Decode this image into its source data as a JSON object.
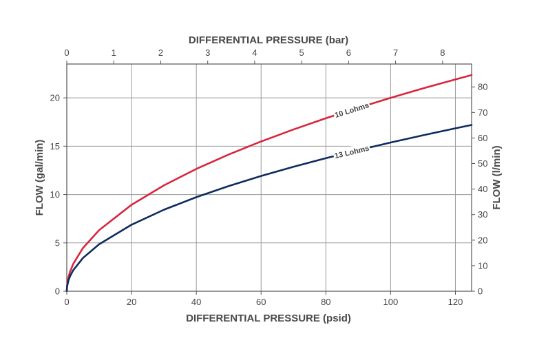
{
  "chart_data": {
    "type": "line",
    "x_bottom": {
      "label": "DIFFERENTIAL PRESSURE (psid)",
      "range": [
        0,
        125
      ],
      "ticks": [
        0,
        20,
        40,
        60,
        80,
        100,
        120
      ]
    },
    "x_top": {
      "label": "DIFFERENTIAL PRESSURE (bar)",
      "range": [
        0,
        8.618
      ],
      "ticks": [
        0,
        1,
        2,
        3,
        4,
        5,
        6,
        7,
        8
      ]
    },
    "y_left": {
      "label": "FLOW (gal/min)",
      "range": [
        0,
        23.5
      ],
      "ticks": [
        0,
        5,
        10,
        15,
        20
      ]
    },
    "y_right": {
      "label": "FLOW (l/min)",
      "range": [
        0,
        88.96
      ],
      "ticks": [
        0,
        10,
        20,
        30,
        40,
        50,
        60,
        70,
        80
      ]
    },
    "grid": true,
    "series": [
      {
        "name": "10 Lohms",
        "color": "#d7263d",
        "label_at_x": 88,
        "x": [
          0,
          0.1,
          0.5,
          1,
          2,
          5,
          10,
          20,
          30,
          40,
          50,
          60,
          70,
          80,
          90,
          100,
          110,
          120,
          125
        ],
        "y": [
          0,
          0.63,
          1.41,
          2.0,
          2.83,
          4.47,
          6.32,
          8.94,
          10.95,
          12.65,
          14.14,
          15.49,
          16.73,
          17.89,
          18.97,
          20.0,
          20.98,
          21.91,
          22.36
        ]
      },
      {
        "name": "13 Lohms",
        "color": "#0d2b5e",
        "label_at_x": 88,
        "x": [
          0,
          0.1,
          0.5,
          1,
          2,
          5,
          10,
          20,
          30,
          40,
          50,
          60,
          70,
          80,
          90,
          100,
          110,
          120,
          125
        ],
        "y": [
          0,
          0.49,
          1.09,
          1.54,
          2.18,
          3.44,
          4.86,
          6.88,
          8.43,
          9.73,
          10.88,
          11.92,
          12.87,
          13.76,
          14.59,
          15.38,
          16.13,
          16.85,
          17.2
        ]
      }
    ]
  }
}
